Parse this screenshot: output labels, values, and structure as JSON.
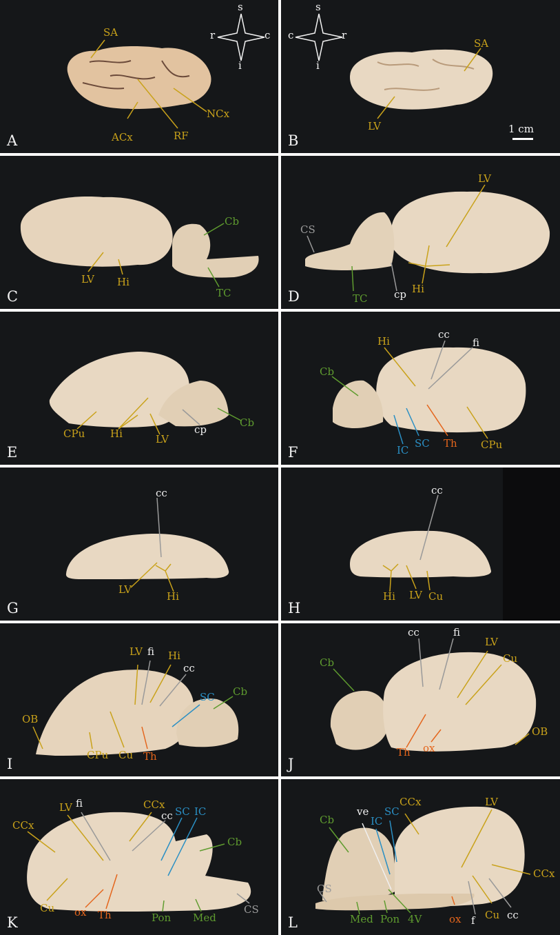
{
  "compass": {
    "left": {
      "top": "s",
      "bottom": "i",
      "west": "r",
      "east": "c"
    },
    "right": {
      "top": "s",
      "bottom": "i",
      "west": "c",
      "east": "r"
    }
  },
  "scale_bar": "1 cm",
  "colors": {
    "gold": "#c9a21a",
    "green": "#5f9c2f",
    "blue": "#2a8fc4",
    "orange": "#e4651c",
    "white": "#f0f0f0",
    "grey": "#9a9a9a"
  },
  "panels": {
    "A": {
      "letter": "A",
      "labels": [
        "SA",
        "ACx",
        "RF",
        "NCx"
      ]
    },
    "B": {
      "letter": "B",
      "labels": [
        "SA",
        "LV"
      ]
    },
    "C": {
      "letter": "C",
      "labels": [
        "Cb",
        "LV",
        "Hi",
        "TC"
      ]
    },
    "D": {
      "letter": "D",
      "labels": [
        "LV",
        "CS",
        "TC",
        "cp",
        "Hi"
      ]
    },
    "E": {
      "letter": "E",
      "labels": [
        "CPu",
        "Hi",
        "LV",
        "cp",
        "Cb"
      ]
    },
    "F": {
      "letter": "F",
      "labels": [
        "cc",
        "fi",
        "Hi",
        "Cb",
        "IC",
        "SC",
        "Th",
        "CPu"
      ]
    },
    "G": {
      "letter": "G",
      "labels": [
        "cc",
        "LV",
        "Hi"
      ]
    },
    "H": {
      "letter": "H",
      "labels": [
        "cc",
        "Hi",
        "LV",
        "Cu"
      ]
    },
    "I": {
      "letter": "I",
      "labels": [
        "LV",
        "fi",
        "Hi",
        "cc",
        "SC",
        "Cb",
        "OB",
        "CPu",
        "Cu",
        "Th"
      ]
    },
    "J": {
      "letter": "J",
      "labels": [
        "cc",
        "fi",
        "LV",
        "Cu",
        "Cb",
        "OB",
        "Th",
        "ox"
      ]
    },
    "K": {
      "letter": "K",
      "labels": [
        "LV",
        "fi",
        "CCx",
        "cc",
        "SC",
        "IC",
        "Cb",
        "CCx",
        "Cu",
        "ox",
        "Th",
        "Pon",
        "Med",
        "CS"
      ]
    },
    "L": {
      "letter": "L",
      "labels": [
        "ve",
        "IC",
        "SC",
        "CCx",
        "LV",
        "Cb",
        "CCx",
        "CS",
        "Med",
        "Pon",
        "4V",
        "ox",
        "f",
        "Cu",
        "cc"
      ]
    }
  }
}
